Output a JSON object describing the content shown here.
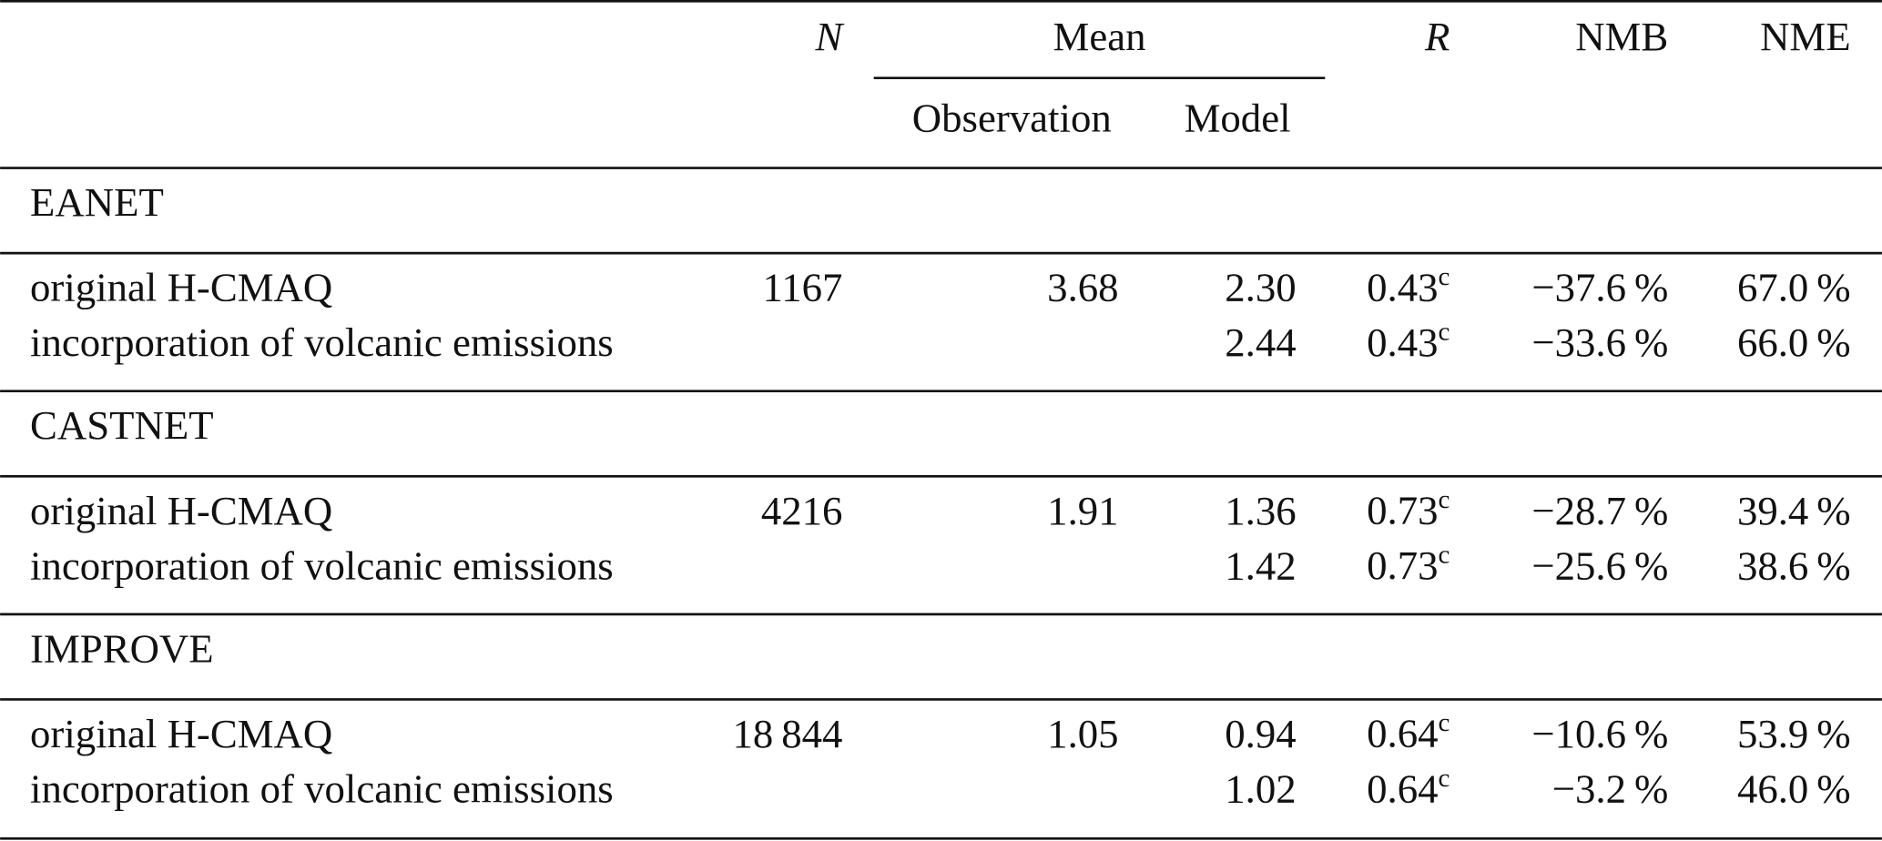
{
  "table": {
    "header": {
      "n": "N",
      "mean": "Mean",
      "observation": "Observation",
      "model": "Model",
      "r": "R",
      "nmb": "NMB",
      "nme": "NME"
    },
    "sections": [
      {
        "name": "EANET",
        "rows": [
          {
            "label": "original H-CMAQ",
            "n": "1167",
            "observation": "3.68",
            "model": "2.30",
            "r": "0.43",
            "r_note": "c",
            "nmb": "−37.6 %",
            "nme": "67.0 %"
          },
          {
            "label": "incorporation of volcanic emissions",
            "model": "2.44",
            "r": "0.43",
            "r_note": "c",
            "nmb": "−33.6 %",
            "nme": "66.0 %"
          }
        ]
      },
      {
        "name": "CASTNET",
        "rows": [
          {
            "label": "original H-CMAQ",
            "n": "4216",
            "observation": "1.91",
            "model": "1.36",
            "r": "0.73",
            "r_note": "c",
            "nmb": "−28.7 %",
            "nme": "39.4 %"
          },
          {
            "label": "incorporation of volcanic emissions",
            "model": "1.42",
            "r": "0.73",
            "r_note": "c",
            "nmb": "−25.6 %",
            "nme": "38.6 %"
          }
        ]
      },
      {
        "name": "IMPROVE",
        "rows": [
          {
            "label": "original H-CMAQ",
            "n": "18 844",
            "observation": "1.05",
            "model": "0.94",
            "r": "0.64",
            "r_note": "c",
            "nmb": "−10.6 %",
            "nme": "53.9 %"
          },
          {
            "label": "incorporation of volcanic emissions",
            "model": "1.02",
            "r": "0.64",
            "r_note": "c",
            "nmb": "−3.2 %",
            "nme": "46.0 %"
          }
        ]
      }
    ]
  }
}
